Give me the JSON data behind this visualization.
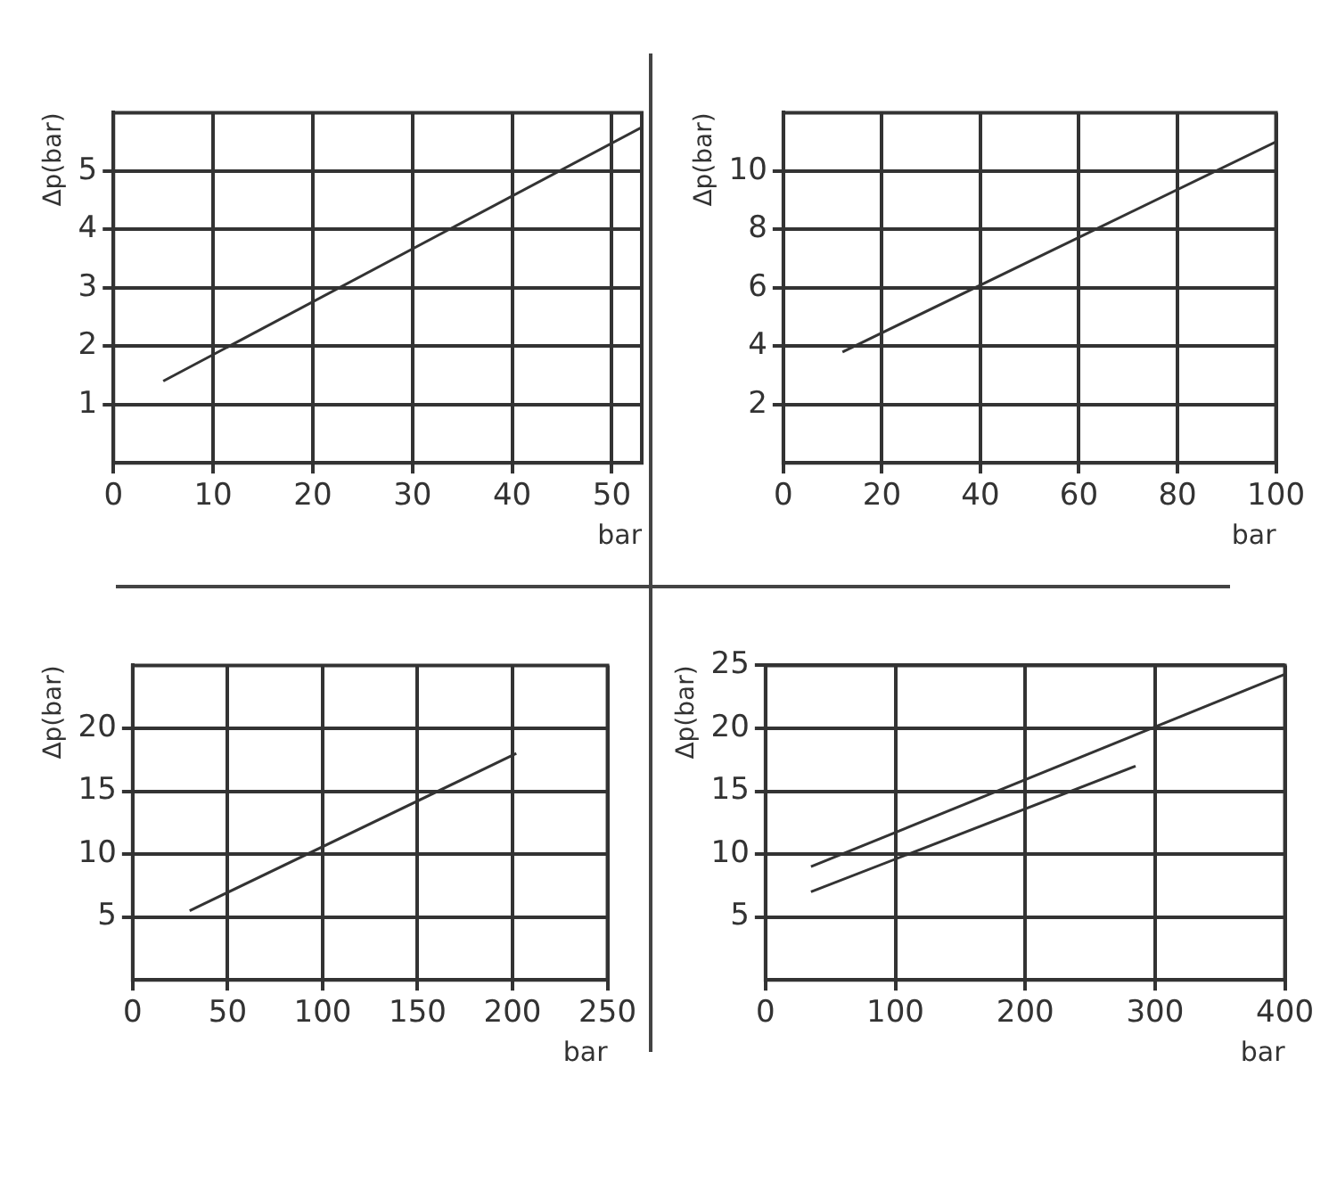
{
  "chart_data": [
    {
      "type": "line",
      "ylabel": "Δp(bar)",
      "xlabel": "bar",
      "xlim": [
        0,
        53
      ],
      "xticks": [
        0,
        10,
        20,
        30,
        40,
        50
      ],
      "ylim": [
        0,
        6
      ],
      "yticks": [
        1,
        2,
        3,
        4,
        5
      ],
      "grid": true,
      "marker": "none",
      "legend": false,
      "series": [
        {
          "color": "#333333",
          "x": [
            5,
            53
          ],
          "values": [
            1.4,
            5.75
          ]
        }
      ]
    },
    {
      "type": "line",
      "ylabel": "Δp(bar)",
      "xlabel": "bar",
      "xlim": [
        0,
        100
      ],
      "xticks": [
        0,
        20,
        40,
        60,
        80,
        100
      ],
      "ylim": [
        0,
        12
      ],
      "yticks": [
        2,
        4,
        6,
        8,
        10
      ],
      "grid": true,
      "marker": "none",
      "legend": false,
      "series": [
        {
          "color": "#333333",
          "x": [
            12,
            100
          ],
          "values": [
            3.8,
            11
          ]
        }
      ]
    },
    {
      "type": "line",
      "ylabel": "Δp(bar)",
      "xlabel": "bar",
      "xlim": [
        0,
        250
      ],
      "xticks": [
        0,
        50,
        100,
        150,
        200,
        250
      ],
      "ylim": [
        0,
        25
      ],
      "yticks": [
        5,
        10,
        15,
        20
      ],
      "grid": true,
      "marker": "none",
      "legend": false,
      "series": [
        {
          "color": "#333333",
          "x": [
            30,
            202
          ],
          "values": [
            5.5,
            18
          ]
        }
      ]
    },
    {
      "type": "line",
      "ylabel": "Δp(bar)",
      "xlabel": "bar",
      "xlim": [
        0,
        400
      ],
      "xticks": [
        0,
        100,
        200,
        300,
        400
      ],
      "ylim": [
        0,
        25
      ],
      "yticks": [
        5,
        10,
        15,
        20,
        25
      ],
      "grid": true,
      "marker": "none",
      "legend": false,
      "series": [
        {
          "color": "#333333",
          "x": [
            35,
            400
          ],
          "values": [
            9,
            24.3
          ]
        },
        {
          "color": "#333333",
          "x": [
            35,
            285
          ],
          "values": [
            7,
            17
          ]
        }
      ]
    }
  ]
}
